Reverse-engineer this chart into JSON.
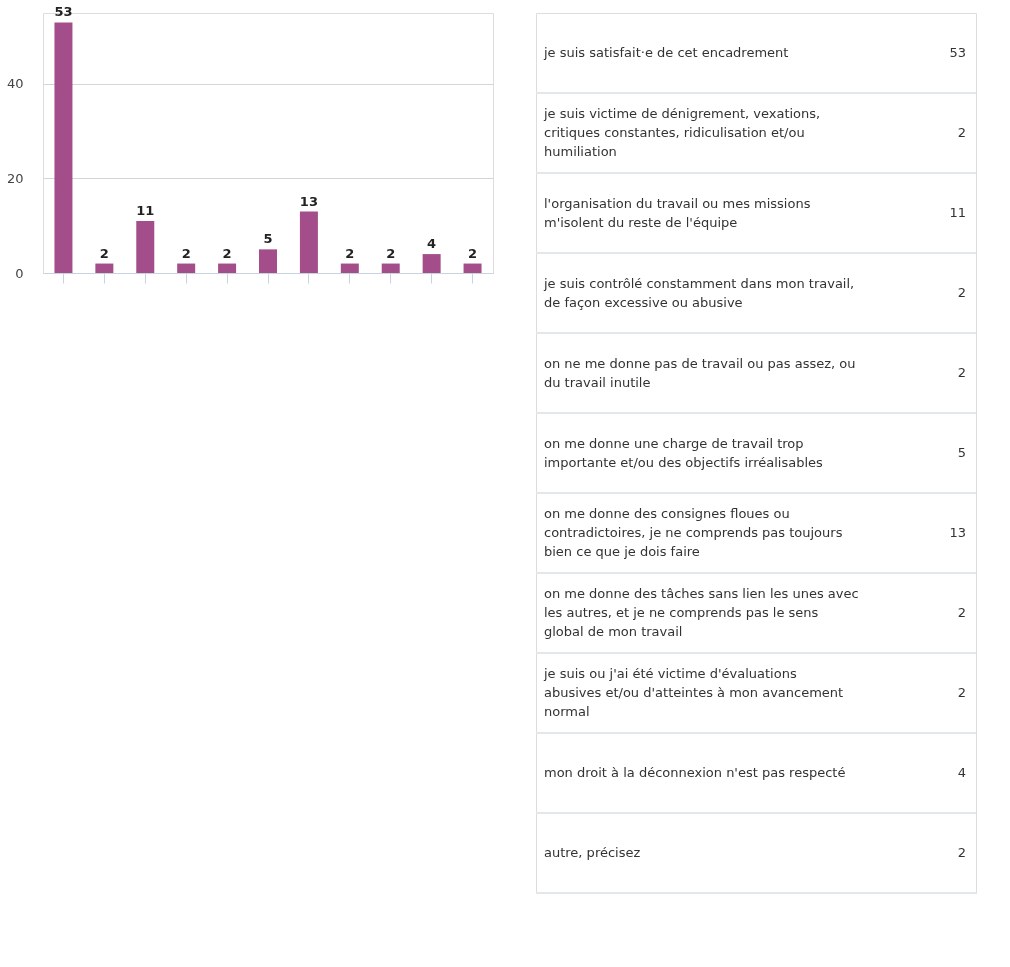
{
  "chart_data": [
    {
      "type": "bar",
      "categories": [
        null,
        null,
        null,
        null,
        null,
        null,
        null,
        null,
        null,
        null,
        null
      ],
      "values": [
        53,
        2,
        11,
        2,
        2,
        5,
        13,
        2,
        2,
        4,
        2
      ],
      "color": "#a34e8a",
      "ylim": [
        0,
        55
      ],
      "yticks": [
        0,
        20,
        40
      ],
      "grid": "y",
      "tick_labels": "y",
      "data_labels": true
    },
    {
      "type": "other",
      "categories": [
        "je suis satisfait·e de cet encadrement",
        "je suis victime de dénigrement, vexations, critiques constantes, ridiculisation et/ou humiliation",
        "l'organisation du travail ou mes missions m'isolent du reste de l'équipe",
        "je suis contrôlé constamment dans mon travail, de façon excessive ou abusive",
        "on ne me donne pas de travail ou pas assez, ou du travail inutile",
        "on me donne une charge de travail trop importante et/ou des objectifs irréalisables",
        "on me donne des consignes floues ou contradictoires, je ne comprends pas toujours bien ce que je dois faire",
        "on me donne des tâches sans lien les unes avec les autres, et je ne comprends pas le sens global de mon travail",
        "je suis ou j'ai été victime d'évaluations abusives et/ou d'atteintes à mon avancement normal",
        "mon droit à la déconnexion n'est pas respecté",
        "autre, précisez"
      ],
      "values": [
        53,
        2,
        11,
        2,
        2,
        5,
        13,
        2,
        2,
        4,
        2
      ],
      "data_labels": true
    }
  ]
}
